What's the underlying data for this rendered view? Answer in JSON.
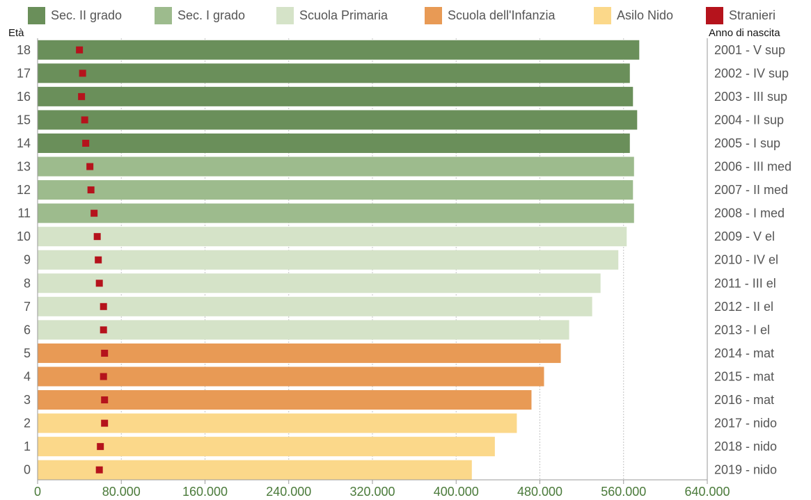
{
  "chart_data": {
    "type": "bar",
    "orientation": "horizontal",
    "y_axis_title": "Età",
    "right_axis_title": "Anno di nascita",
    "xlim": [
      0,
      640000
    ],
    "x_ticks": [
      "0",
      "80.000",
      "160.000",
      "240.000",
      "320.000",
      "400.000",
      "480.000",
      "560.000",
      "640.000"
    ],
    "legend": [
      {
        "label": "Sec. II grado",
        "color": "#6a8f5a"
      },
      {
        "label": "Sec. I grado",
        "color": "#9dbb8d"
      },
      {
        "label": "Scuola Primaria",
        "color": "#d5e3c8"
      },
      {
        "label": "Scuola dell'Infanzia",
        "color": "#e89a55"
      },
      {
        "label": "Asilo Nido",
        "color": "#fbd88a"
      },
      {
        "label": "Stranieri",
        "color": "#b5131c"
      }
    ],
    "rows": [
      {
        "age": "18",
        "anno": "2001 - V sup",
        "group": 0,
        "value": 575000,
        "stranieri": 40000
      },
      {
        "age": "17",
        "anno": "2002 - IV sup",
        "group": 0,
        "value": 566000,
        "stranieri": 43000
      },
      {
        "age": "16",
        "anno": "2003 - III sup",
        "group": 0,
        "value": 569000,
        "stranieri": 42000
      },
      {
        "age": "15",
        "anno": "2004 - II sup",
        "group": 0,
        "value": 573000,
        "stranieri": 45000
      },
      {
        "age": "14",
        "anno": "2005 - I sup",
        "group": 0,
        "value": 566000,
        "stranieri": 46000
      },
      {
        "age": "13",
        "anno": "2006 - III med",
        "group": 1,
        "value": 570000,
        "stranieri": 50000
      },
      {
        "age": "12",
        "anno": "2007 - II med",
        "group": 1,
        "value": 569000,
        "stranieri": 51000
      },
      {
        "age": "11",
        "anno": "2008 - I med",
        "group": 1,
        "value": 570000,
        "stranieri": 54000
      },
      {
        "age": "10",
        "anno": "2009 - V el",
        "group": 2,
        "value": 563000,
        "stranieri": 57000
      },
      {
        "age": "9",
        "anno": "2010 - IV el",
        "group": 2,
        "value": 555000,
        "stranieri": 58000
      },
      {
        "age": "8",
        "anno": "2011 - III el",
        "group": 2,
        "value": 538000,
        "stranieri": 59000
      },
      {
        "age": "7",
        "anno": "2012 - II el",
        "group": 2,
        "value": 530000,
        "stranieri": 63000
      },
      {
        "age": "6",
        "anno": "2013 - I el",
        "group": 2,
        "value": 508000,
        "stranieri": 63000
      },
      {
        "age": "5",
        "anno": "2014 - mat",
        "group": 3,
        "value": 500000,
        "stranieri": 64000
      },
      {
        "age": "4",
        "anno": "2015 - mat",
        "group": 3,
        "value": 484000,
        "stranieri": 63000
      },
      {
        "age": "3",
        "anno": "2016 - mat",
        "group": 3,
        "value": 472000,
        "stranieri": 64000
      },
      {
        "age": "2",
        "anno": "2017 - nido",
        "group": 4,
        "value": 458000,
        "stranieri": 64000
      },
      {
        "age": "1",
        "anno": "2018 - nido",
        "group": 4,
        "value": 437000,
        "stranieri": 60000
      },
      {
        "age": "0",
        "anno": "2019 - nido",
        "group": 4,
        "value": 415000,
        "stranieri": 59000
      }
    ]
  }
}
